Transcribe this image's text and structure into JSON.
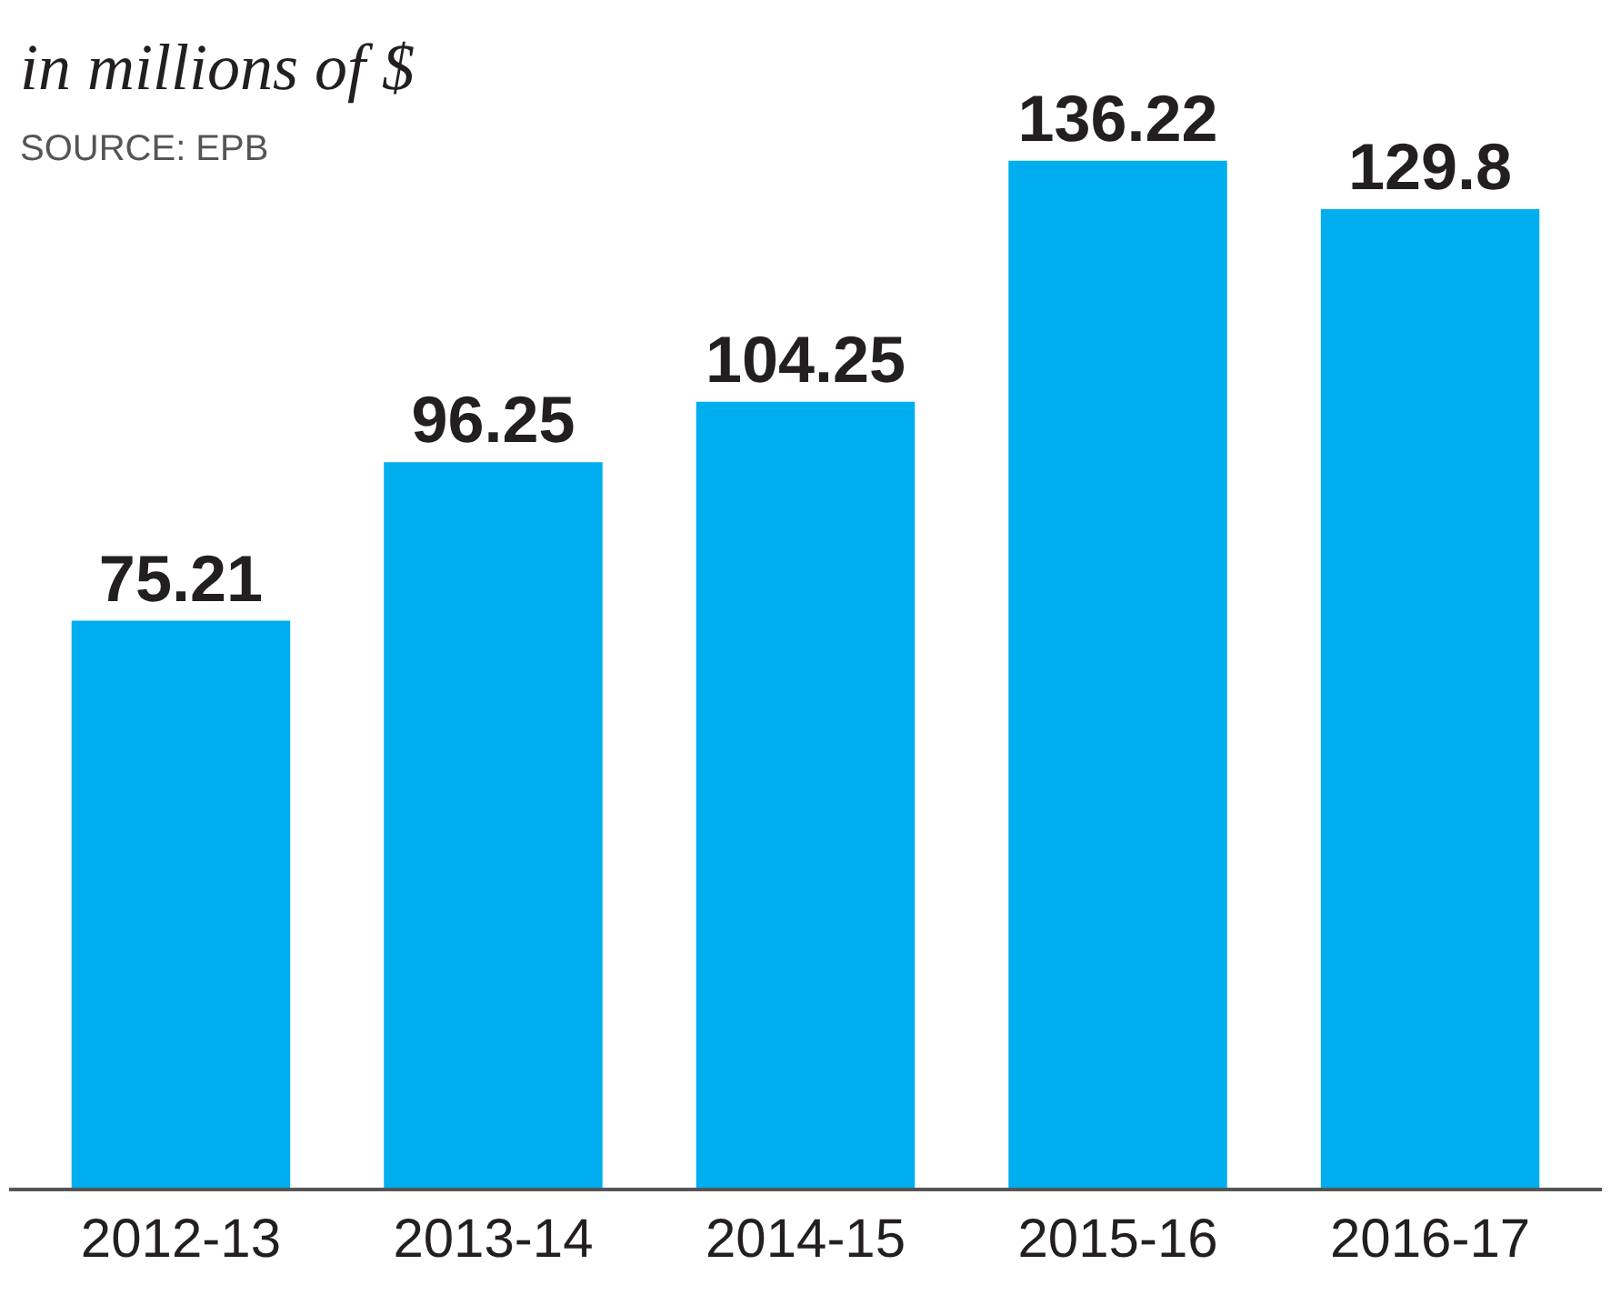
{
  "chart_data": {
    "type": "bar",
    "subtitle": "in millions of $",
    "annotations": [
      "SOURCE: EPB"
    ],
    "categories": [
      "2012-13",
      "2013-14",
      "2014-15",
      "2015-16",
      "2016-17"
    ],
    "values": [
      75.21,
      96.25,
      104.25,
      136.22,
      129.8
    ],
    "color": "#00aeef",
    "data_labels": true
  }
}
